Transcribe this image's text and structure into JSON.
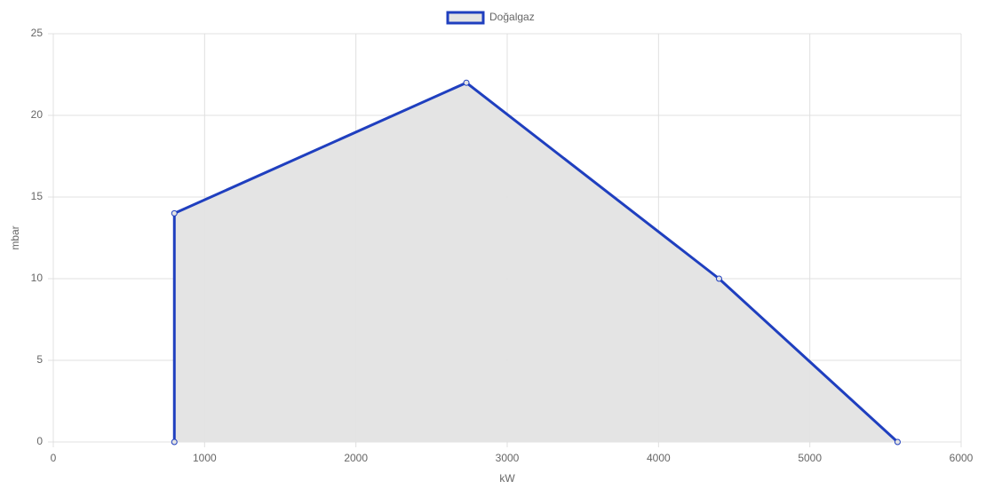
{
  "chart_data": {
    "type": "line",
    "x": [
      800,
      800,
      2730,
      4400,
      5580
    ],
    "series": [
      {
        "name": "Doğalgaz",
        "color": "#1f3fbf",
        "fill": "#e3e3e3",
        "values": [
          0,
          14,
          22,
          10,
          0
        ]
      }
    ],
    "xlabel": "kW",
    "ylabel": "mbar",
    "xlim": [
      0,
      6000
    ],
    "xticks": [
      0,
      1000,
      2000,
      3000,
      4000,
      5000,
      6000
    ],
    "ylim": [
      0,
      25
    ],
    "yticks": [
      0,
      5,
      10,
      15,
      20,
      25
    ],
    "grid": true,
    "legend": "top"
  }
}
